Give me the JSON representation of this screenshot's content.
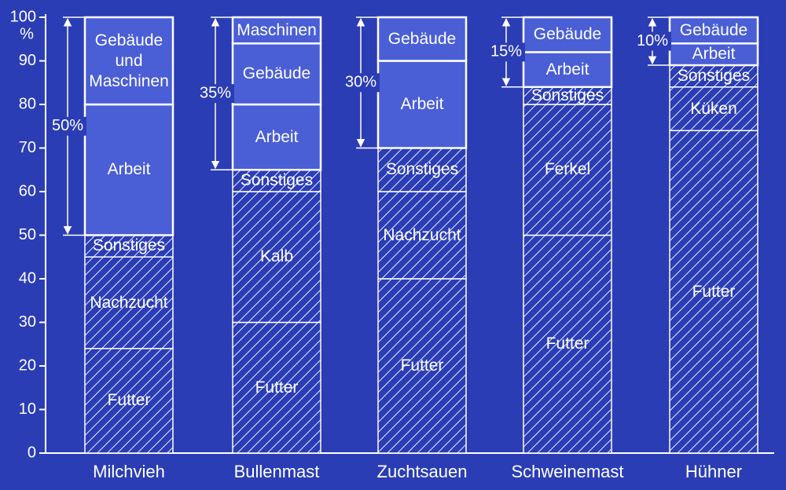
{
  "chart_data": {
    "type": "stacked-bar",
    "ylabel": "%",
    "ylim": [
      0,
      100
    ],
    "yticks": [
      0,
      10,
      20,
      30,
      40,
      50,
      60,
      70,
      80,
      90,
      100
    ],
    "bars": [
      {
        "name": "Milchvieh",
        "bracket_label": "50%",
        "segments": [
          {
            "name": "Futter",
            "value": 24,
            "hatched": true
          },
          {
            "name": "Nachzucht",
            "value": 21,
            "hatched": true
          },
          {
            "name": "Sonstiges",
            "value": 5,
            "hatched": true
          },
          {
            "name": "Arbeit",
            "value": 30,
            "hatched": false
          },
          {
            "name": "Gebäude und Maschinen",
            "value": 20,
            "hatched": false
          }
        ]
      },
      {
        "name": "Bullenmast",
        "bracket_label": "35%",
        "segments": [
          {
            "name": "Futter",
            "value": 30,
            "hatched": true
          },
          {
            "name": "Kalb",
            "value": 30,
            "hatched": true
          },
          {
            "name": "Sonstiges",
            "value": 5,
            "hatched": true
          },
          {
            "name": "Arbeit",
            "value": 15,
            "hatched": false
          },
          {
            "name": "Gebäude",
            "value": 14,
            "hatched": false
          },
          {
            "name": "Maschinen",
            "value": 6,
            "hatched": false
          }
        ]
      },
      {
        "name": "Zuchtsauen",
        "bracket_label": "30%",
        "segments": [
          {
            "name": "Futter",
            "value": 40,
            "hatched": true
          },
          {
            "name": "Nachzucht",
            "value": 20,
            "hatched": true
          },
          {
            "name": "Sonstiges",
            "value": 10,
            "hatched": true
          },
          {
            "name": "Arbeit",
            "value": 20,
            "hatched": false
          },
          {
            "name": "Gebäude",
            "value": 10,
            "hatched": false
          }
        ]
      },
      {
        "name": "Schweinemast",
        "bracket_label": "15%",
        "segments": [
          {
            "name": "Futter",
            "value": 50,
            "hatched": true
          },
          {
            "name": "Ferkel",
            "value": 30,
            "hatched": true
          },
          {
            "name": "Sonstiges",
            "value": 4,
            "hatched": true
          },
          {
            "name": "Arbeit",
            "value": 8,
            "hatched": false
          },
          {
            "name": "Gebäude",
            "value": 8,
            "hatched": false
          }
        ]
      },
      {
        "name": "Hühner",
        "bracket_label": "10%",
        "segments": [
          {
            "name": "Futter",
            "value": 74,
            "hatched": true
          },
          {
            "name": "Küken",
            "value": 10,
            "hatched": true
          },
          {
            "name": "Sonstiges",
            "value": 5,
            "hatched": true
          },
          {
            "name": "Arbeit",
            "value": 5,
            "hatched": false
          },
          {
            "name": "Gebäude",
            "value": 6,
            "hatched": false
          }
        ]
      }
    ]
  }
}
